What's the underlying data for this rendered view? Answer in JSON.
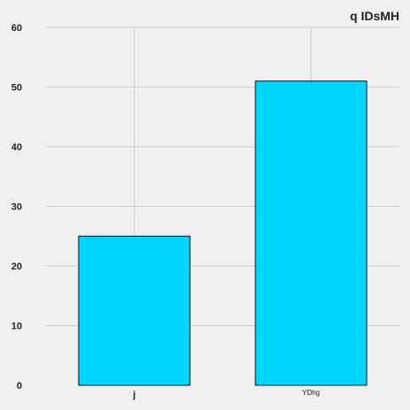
{
  "chart_data": {
    "type": "bar",
    "title": "q IDsMH",
    "categories": [
      "j",
      "YDhg"
    ],
    "values": [
      25,
      51
    ],
    "xlabel": "",
    "ylabel": "",
    "ylim": [
      0,
      60
    ],
    "yticks": [
      0,
      10,
      20,
      30,
      40,
      50,
      60
    ],
    "grid": true,
    "legend": "none"
  },
  "colors": {
    "background": "#f0f0f0",
    "bar_fill": "#00d5ff",
    "bar_edge": "#111111",
    "grid": "#cbcbcb",
    "text": "#222222"
  }
}
